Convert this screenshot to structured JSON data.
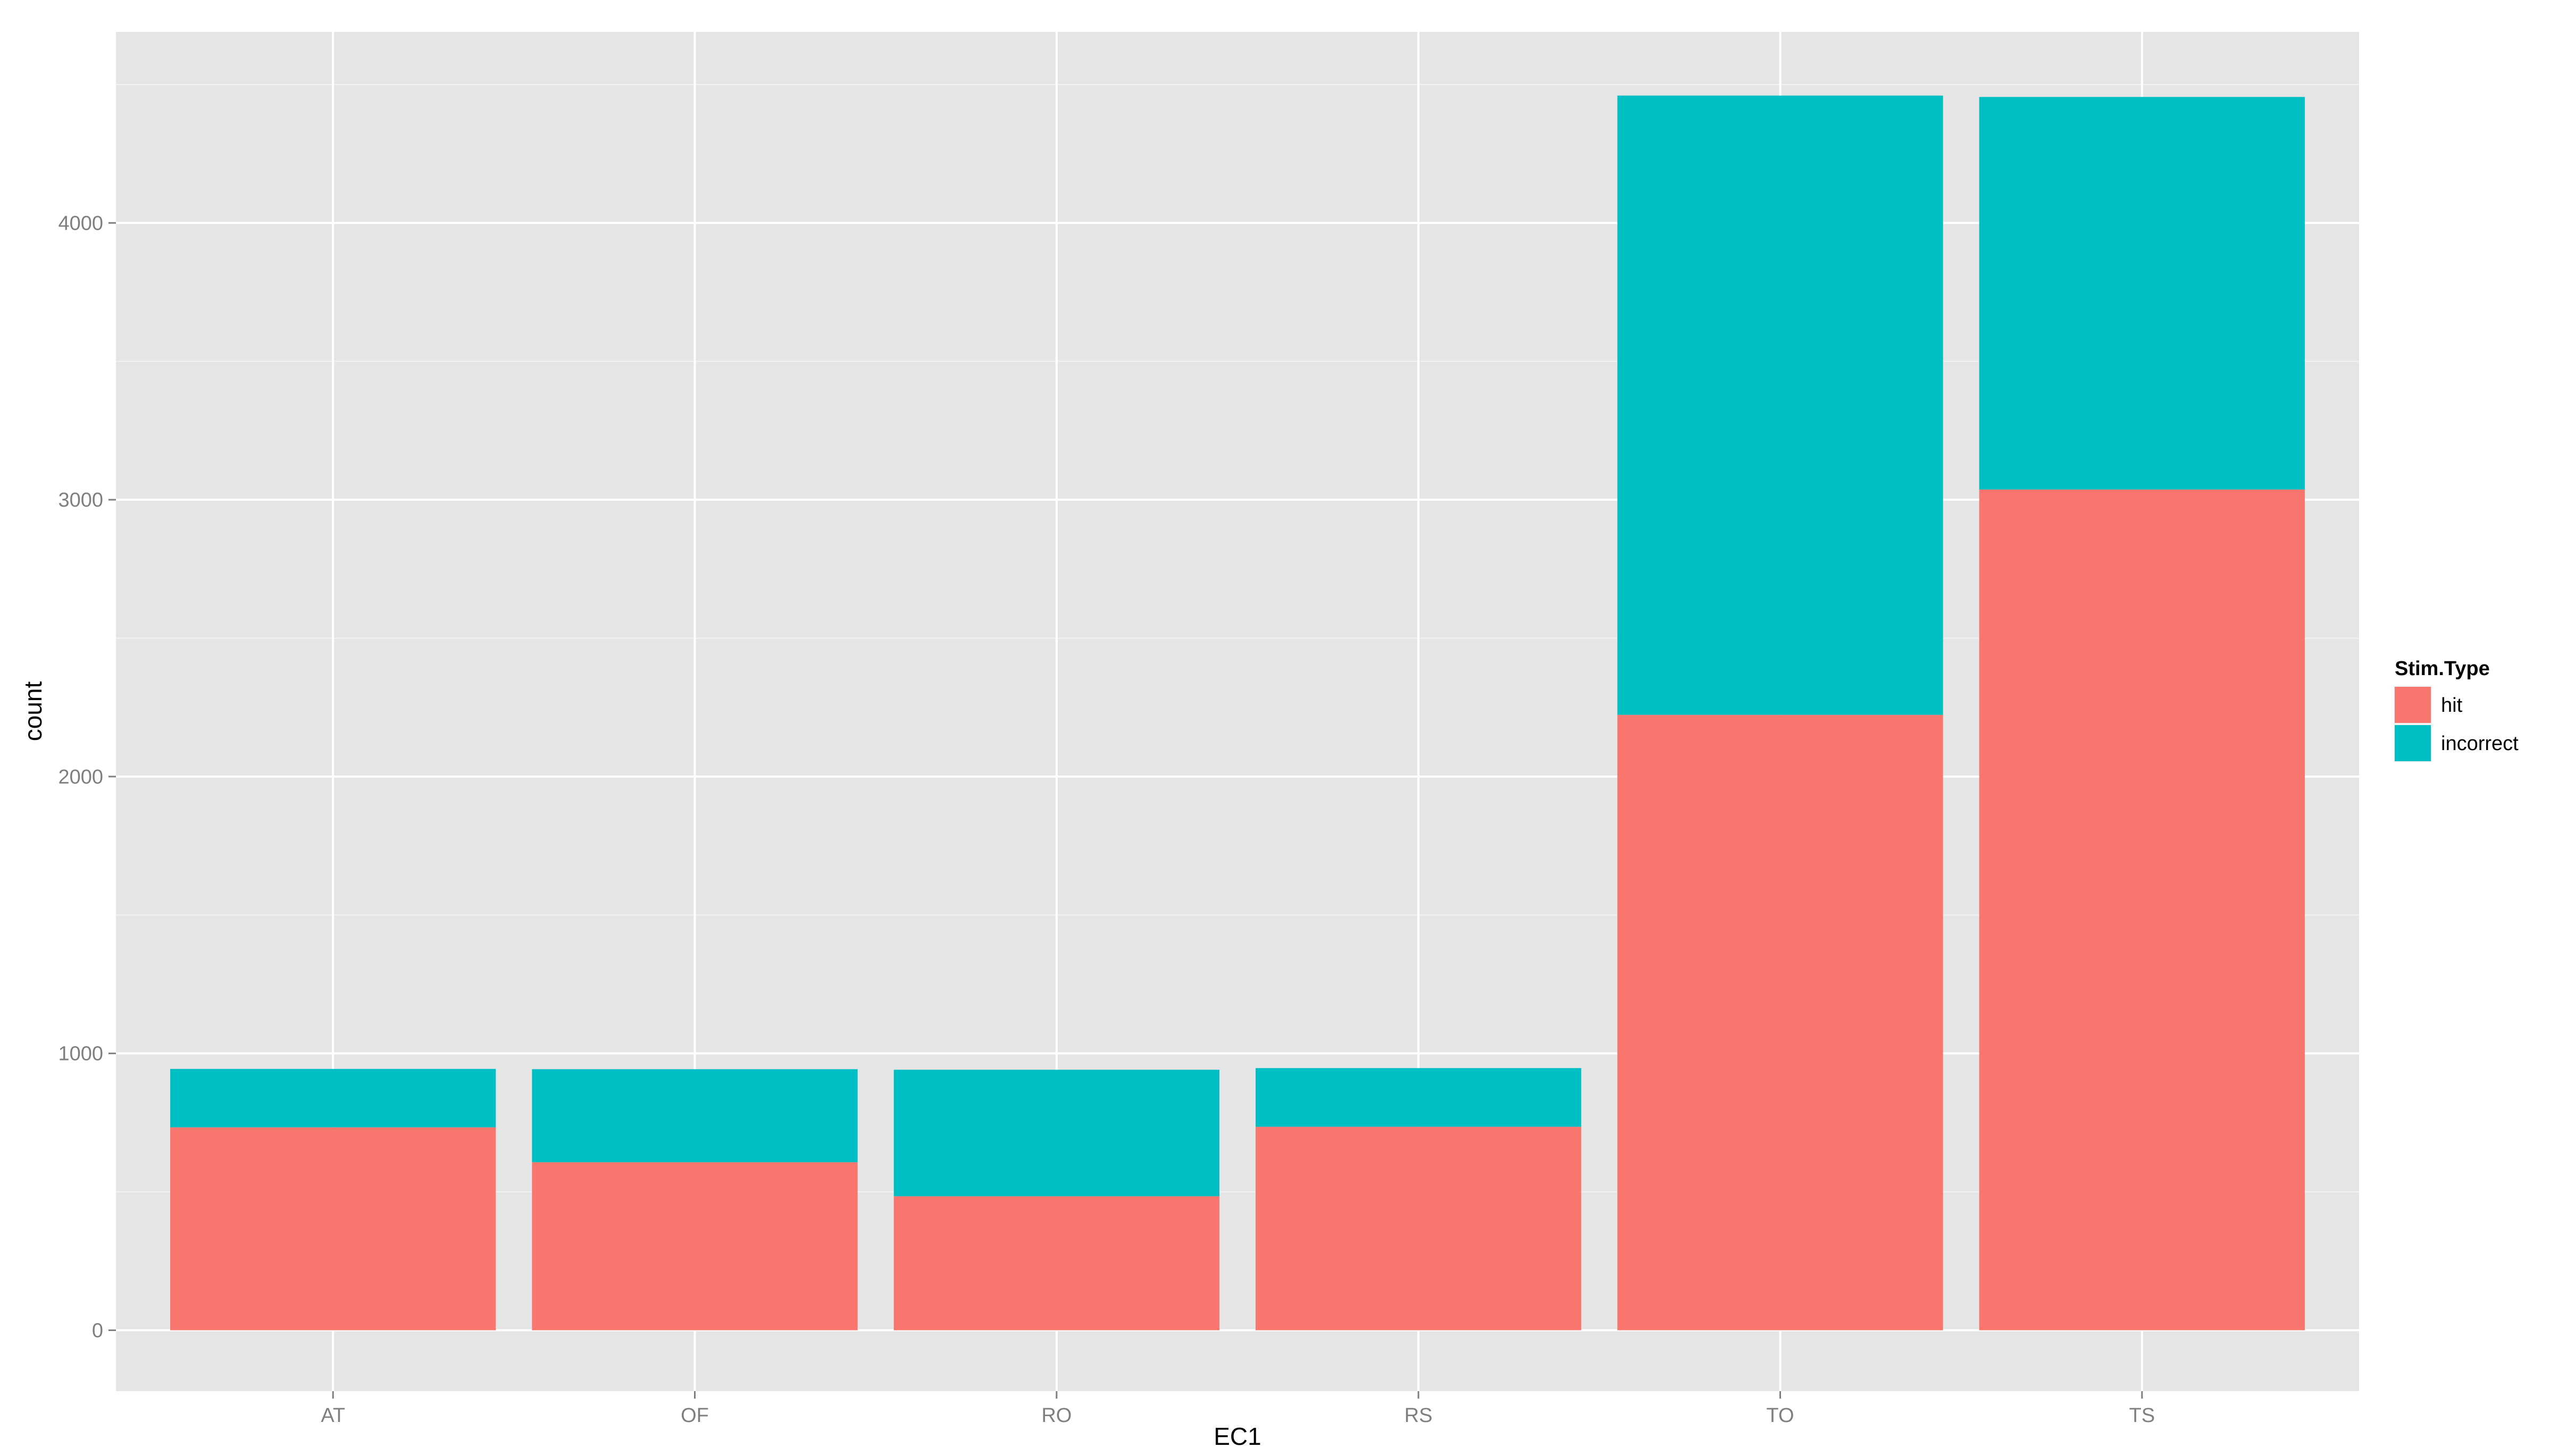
{
  "chart_data": {
    "type": "bar",
    "stacked": true,
    "categories": [
      "AT",
      "OF",
      "RO",
      "RS",
      "TO",
      "TS"
    ],
    "series": [
      {
        "name": "hit",
        "color": "#F8766D",
        "values": [
          733,
          607,
          484,
          735,
          2223,
          3037
        ]
      },
      {
        "name": "incorrect",
        "color": "#00BFC4",
        "values": [
          211,
          336,
          457,
          212,
          2237,
          1418
        ]
      }
    ],
    "title": "",
    "xlabel": "EC1",
    "ylabel": "count",
    "ylim": [
      -220,
      4690
    ],
    "yticks": [
      0,
      1000,
      2000,
      3000,
      4000
    ],
    "y_tick_labels": [
      "0",
      "1000",
      "2000",
      "3000",
      "4000"
    ],
    "grid": true,
    "legend": {
      "title": "Stim.Type",
      "position": "right",
      "labels": [
        "hit",
        "incorrect"
      ]
    },
    "panel_background": "#E5E5E5",
    "grid_color": "#FFFFFF"
  }
}
